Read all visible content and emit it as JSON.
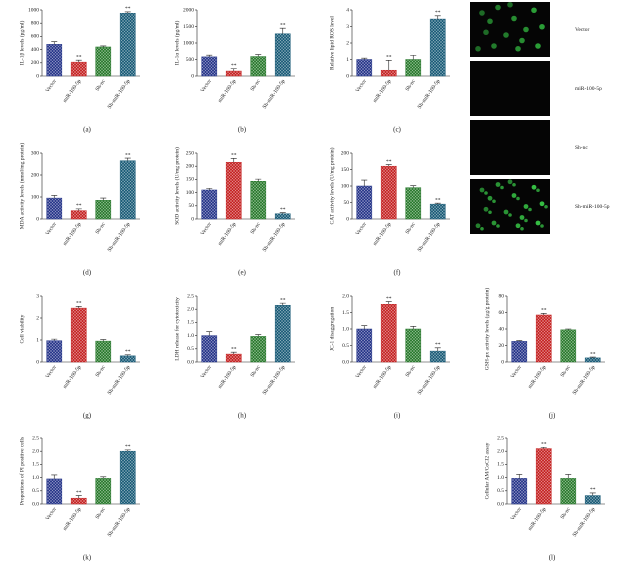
{
  "chart_data": [
    {
      "type": "bar",
      "panel": "(a)",
      "ylabel": "IL-1β levels (pg/ml)",
      "categories": [
        "Vector",
        "miR-100-5p",
        "Sh-nc",
        "Sh-miR-100-5p"
      ],
      "values": [
        480,
        210,
        440,
        950
      ],
      "errors": [
        40,
        30,
        15,
        20
      ],
      "annotations": [
        null,
        "**",
        null,
        "**"
      ],
      "colors": [
        "#2b3a8c",
        "#c62828",
        "#2e7d32",
        "#1f5f7a"
      ],
      "ylim": [
        0,
        1000
      ],
      "yticks": [
        0,
        200,
        400,
        600,
        800,
        1000
      ]
    },
    {
      "type": "bar",
      "panel": "(b)",
      "ylabel": "IL-1α levels (pg/ml)",
      "categories": [
        "Vector",
        "miR-100-5p",
        "Sh-nc",
        "Sh-miR-100-5p"
      ],
      "values": [
        580,
        150,
        590,
        1280
      ],
      "errors": [
        50,
        70,
        60,
        170
      ],
      "annotations": [
        null,
        "**",
        null,
        "**"
      ],
      "colors": [
        "#2b3a8c",
        "#c62828",
        "#2e7d32",
        "#1f5f7a"
      ],
      "ylim": [
        0,
        2000
      ],
      "yticks": [
        0,
        500,
        1000,
        1500,
        2000
      ]
    },
    {
      "type": "bar",
      "panel": "(c)",
      "ylabel": "Relative lipid ROS level",
      "categories": [
        "Vector",
        "miR-100-5p",
        "Sh-nc",
        "Sh-miR-100-5p"
      ],
      "values": [
        1.0,
        0.35,
        1.0,
        3.45
      ],
      "errors": [
        0.08,
        0.6,
        0.25,
        0.2
      ],
      "annotations": [
        null,
        "**",
        null,
        "**"
      ],
      "colors": [
        "#2b3a8c",
        "#c62828",
        "#2e7d32",
        "#1f5f7a"
      ],
      "ylim": [
        0,
        4
      ],
      "yticks": [
        0,
        1,
        2,
        3,
        4
      ]
    },
    {
      "type": "bar",
      "panel": "(d)",
      "ylabel": "MDA activity levels (nmol/mg protein)",
      "categories": [
        "Vector",
        "miR-100-5p",
        "Sh-nc",
        "Sh-miR-100-5p"
      ],
      "values": [
        95,
        38,
        85,
        265
      ],
      "errors": [
        12,
        8,
        10,
        12
      ],
      "annotations": [
        null,
        "**",
        null,
        "**"
      ],
      "colors": [
        "#2b3a8c",
        "#c62828",
        "#2e7d32",
        "#1f5f7a"
      ],
      "ylim": [
        0,
        300
      ],
      "yticks": [
        0,
        100,
        200,
        300
      ]
    },
    {
      "type": "bar",
      "panel": "(e)",
      "ylabel": "SOD activity levels (U/mg protein)",
      "categories": [
        "Vector",
        "miR-100-5p",
        "Sh-nc",
        "Sh-miR-100-5p"
      ],
      "values": [
        110,
        215,
        143,
        20
      ],
      "errors": [
        6,
        15,
        8,
        4
      ],
      "annotations": [
        null,
        "**",
        null,
        "**"
      ],
      "colors": [
        "#2b3a8c",
        "#c62828",
        "#2e7d32",
        "#1f5f7a"
      ],
      "ylim": [
        0,
        250
      ],
      "yticks": [
        0,
        50,
        100,
        150,
        200,
        250
      ]
    },
    {
      "type": "bar",
      "panel": "(f)",
      "ylabel": "CAT activity levels (U/mg protein)",
      "categories": [
        "Vector",
        "miR-100-5p",
        "Sh-nc",
        "Sh-miR-100-5p"
      ],
      "values": [
        100,
        160,
        95,
        45
      ],
      "errors": [
        18,
        5,
        6,
        3
      ],
      "annotations": [
        null,
        "**",
        null,
        "**"
      ],
      "colors": [
        "#2b3a8c",
        "#c62828",
        "#2e7d32",
        "#1f5f7a"
      ],
      "ylim": [
        0,
        200
      ],
      "yticks": [
        0,
        50,
        100,
        150,
        200
      ]
    },
    {
      "type": "bar",
      "panel": "(g)",
      "ylabel": "Cell viability",
      "categories": [
        "Vector",
        "miR-100-5p",
        "Sh-nc",
        "Sh-miR-100-5p"
      ],
      "values": [
        0.97,
        2.45,
        0.95,
        0.28
      ],
      "errors": [
        0.07,
        0.08,
        0.07,
        0.05
      ],
      "annotations": [
        null,
        "**",
        null,
        "**"
      ],
      "colors": [
        "#2b3a8c",
        "#c62828",
        "#2e7d32",
        "#1f5f7a"
      ],
      "ylim": [
        0,
        3
      ],
      "yticks": [
        0,
        1,
        2,
        3
      ]
    },
    {
      "type": "bar",
      "panel": "(h)",
      "ylabel": "LDH release for cytotoxicity",
      "categories": [
        "Vector",
        "miR-100-5p",
        "Sh-nc",
        "Sh-miR-100-5p"
      ],
      "values": [
        1.0,
        0.3,
        0.97,
        2.15
      ],
      "errors": [
        0.15,
        0.07,
        0.07,
        0.08
      ],
      "annotations": [
        null,
        "**",
        null,
        "**"
      ],
      "colors": [
        "#2b3a8c",
        "#c62828",
        "#2e7d32",
        "#1f5f7a"
      ],
      "ylim": [
        0,
        2.5
      ],
      "yticks": [
        {
          "value": 0,
          "label": "0.0"
        },
        0.5,
        {
          "value": 1,
          "label": "1.0"
        },
        1.5,
        {
          "value": 2,
          "label": "2.0"
        },
        2.5
      ]
    },
    {
      "type": "bar",
      "panel": "(i)",
      "ylabel": "JC-1 disaggregation",
      "categories": [
        "Vector",
        "miR-100-5p",
        "Sh-nc",
        "Sh-miR-100-5p"
      ],
      "values": [
        1.0,
        1.75,
        1.0,
        0.33
      ],
      "errors": [
        0.1,
        0.08,
        0.08,
        0.1
      ],
      "annotations": [
        null,
        "**",
        null,
        "**"
      ],
      "colors": [
        "#2b3a8c",
        "#c62828",
        "#2e7d32",
        "#1f5f7a"
      ],
      "ylim": [
        0,
        2
      ],
      "yticks": [
        {
          "value": 0,
          "label": "0.0"
        },
        0.5,
        {
          "value": 1,
          "label": "1.0"
        },
        1.5,
        {
          "value": 2,
          "label": "2.0"
        }
      ]
    },
    {
      "type": "bar",
      "panel": "(j)",
      "ylabel": "GSH-px activity levels (μg/g protein)",
      "categories": [
        "Vector",
        "miR-100-5p",
        "Sh-nc",
        "Sh-miR-100-5p"
      ],
      "values": [
        25,
        57,
        39,
        5
      ],
      "errors": [
        1,
        2,
        1,
        1
      ],
      "annotations": [
        null,
        "**",
        null,
        "**"
      ],
      "colors": [
        "#2b3a8c",
        "#c62828",
        "#2e7d32",
        "#1f5f7a"
      ],
      "ylim": [
        0,
        80
      ],
      "yticks": [
        0,
        20,
        40,
        60,
        80
      ]
    },
    {
      "type": "bar",
      "panel": "(k)",
      "ylabel": "Proportions of PI positive cells",
      "categories": [
        "Vector",
        "miR-100-5p",
        "Sh-nc",
        "Sh-miR-100-5p"
      ],
      "values": [
        0.95,
        0.22,
        0.97,
        2.0
      ],
      "errors": [
        0.15,
        0.1,
        0.06,
        0.05
      ],
      "annotations": [
        null,
        "**",
        null,
        "**"
      ],
      "colors": [
        "#2b3a8c",
        "#c62828",
        "#2e7d32",
        "#1f5f7a"
      ],
      "ylim": [
        0,
        2.5
      ],
      "yticks": [
        {
          "value": 0,
          "label": "0.0"
        },
        0.5,
        {
          "value": 1,
          "label": "1.0"
        },
        1.5,
        {
          "value": 2,
          "label": "2.0"
        },
        2.5
      ]
    },
    {
      "type": "bar",
      "panel": "(l)",
      "ylabel": "Cellular AM/CoCl2 assay",
      "categories": [
        "Vector",
        "miR-100-5p",
        "Sh-nc",
        "Sh-miR-100-5p"
      ],
      "values": [
        0.97,
        2.1,
        0.97,
        0.32
      ],
      "errors": [
        0.15,
        0.05,
        0.15,
        0.1
      ],
      "annotations": [
        null,
        "**",
        null,
        "**"
      ],
      "colors": [
        "#2b3a8c",
        "#c62828",
        "#2e7d32",
        "#1f5f7a"
      ],
      "ylim": [
        0,
        2.5
      ],
      "yticks": [
        {
          "value": 0,
          "label": "0.0"
        },
        0.5,
        {
          "value": 1,
          "label": "1.0"
        },
        1.5,
        {
          "value": 2,
          "label": "2.0"
        },
        2.5
      ]
    }
  ],
  "images": {
    "labels": [
      "Vector",
      "miR-100-5p",
      "Sh-nc",
      "Sh-miR-100-5p"
    ]
  }
}
